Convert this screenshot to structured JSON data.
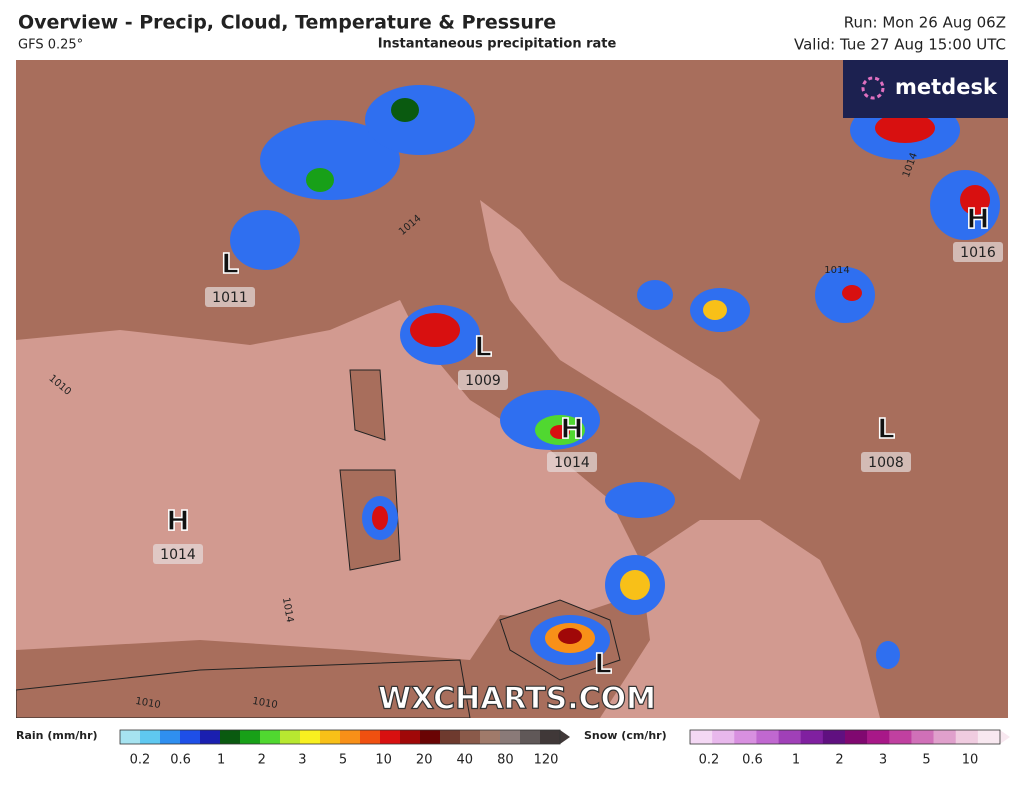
{
  "header": {
    "title": "Overview - Precip, Cloud, Temperature & Pressure",
    "model": "GFS 0.25°",
    "subtitle": "Instantaneous precipitation rate",
    "run": "Run: Mon 26 Aug 06Z",
    "valid": "Valid: Tue 27 Aug 15:00 UTC",
    "brand": "metdesk"
  },
  "map": {
    "pressure_systems": [
      {
        "symbol": "L",
        "value": "1011"
      },
      {
        "symbol": "L",
        "value": "1009"
      },
      {
        "symbol": "H",
        "value": "1014"
      },
      {
        "symbol": "L",
        "value": "1008"
      },
      {
        "symbol": "H",
        "value": "1014"
      },
      {
        "symbol": "H",
        "value": "1016"
      },
      {
        "symbol": "L"
      }
    ],
    "isobar_labels": [
      "1014",
      "1014",
      "1014",
      "1010",
      "1014",
      "1010",
      "1010"
    ],
    "watermark": "WXCHARTS.COM"
  },
  "legend": {
    "rain": {
      "title": "Rain (mm/hr)",
      "ticks": [
        "0.2",
        "0.6",
        "1",
        "2",
        "3",
        "5",
        "10",
        "20",
        "40",
        "80",
        "120"
      ],
      "colors": [
        "#a6e3f0",
        "#5fc8f0",
        "#2f8ff0",
        "#1e4fe8",
        "#1a1fb0",
        "#0a5a10",
        "#18a018",
        "#50d830",
        "#b8e830",
        "#f8f020",
        "#f8c018",
        "#f89018",
        "#f05010",
        "#d81010",
        "#a00808",
        "#6a0404",
        "#6e3a2e",
        "#8a5a4a",
        "#a07a6a",
        "#8a7a78",
        "#605858",
        "#403838"
      ]
    },
    "snow": {
      "title": "Snow (cm/hr)",
      "ticks": [
        "0.2",
        "0.6",
        "1",
        "2",
        "3",
        "5",
        "10"
      ],
      "colors": [
        "#f4d8f4",
        "#e8b8ec",
        "#d890e0",
        "#c068d0",
        "#a040b8",
        "#8020a0",
        "#601080",
        "#800870",
        "#a81888",
        "#c040a0",
        "#d070b8",
        "#e0a0cc",
        "#f0cce0",
        "#f8e8f0"
      ]
    }
  }
}
